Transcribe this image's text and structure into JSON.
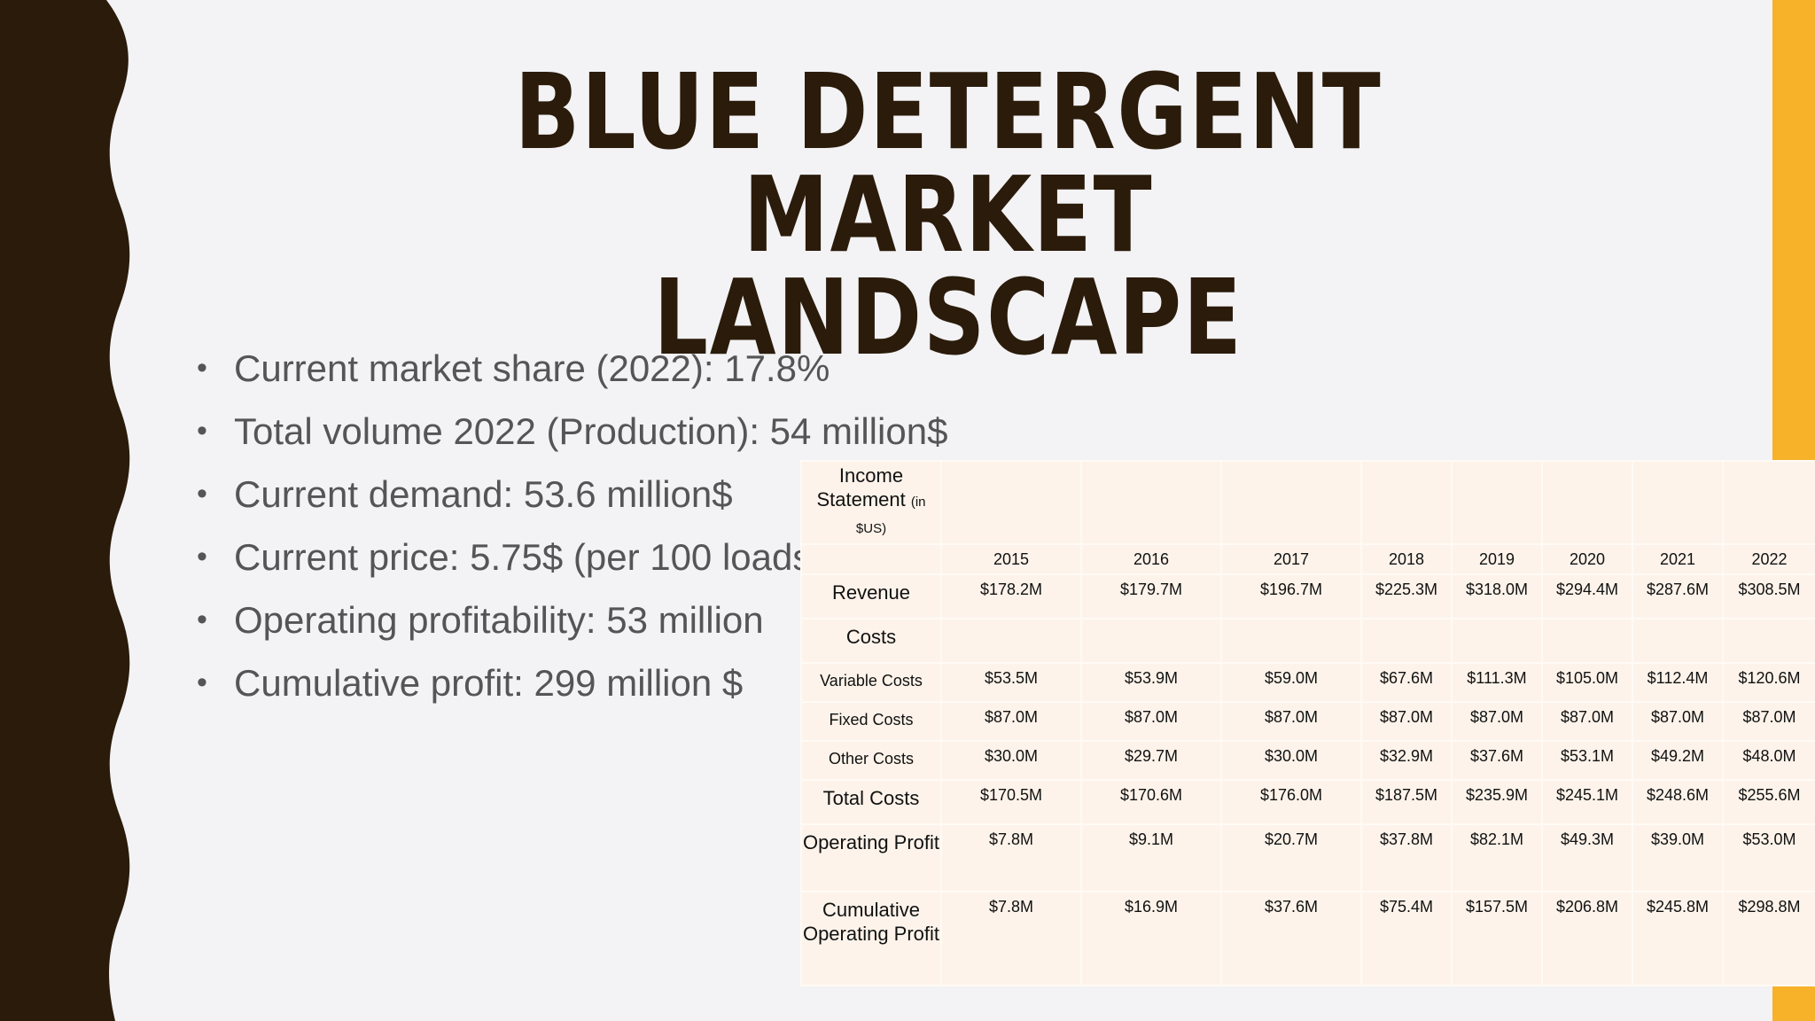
{
  "title": {
    "line1": "BLUE DETERGENT MARKET",
    "line2": "LANDSCAPE"
  },
  "bullets": [
    "Current market share (2022): 17.8%",
    "Total volume 2022 (Production):  54 million$",
    "Current demand: 53.6 million$",
    "Current price: 5.75$ (per 100 loads)",
    "Operating profitability: 53 million",
    "Cumulative profit: 299 million $"
  ],
  "table": {
    "header_main": "Income Statement",
    "header_small": "(in $US)",
    "years": [
      "2015",
      "2016",
      "2017",
      "2018",
      "2019",
      "2020",
      "2021",
      "2022"
    ],
    "rows": [
      {
        "label": "Revenue",
        "values": [
          "$178.2M",
          "$179.7M",
          "$196.7M",
          "$225.3M",
          "$318.0M",
          "$294.4M",
          "$287.6M",
          "$308.5M"
        ]
      },
      {
        "label": "Costs",
        "values": [
          "",
          "",
          "",
          "",
          "",
          "",
          "",
          ""
        ]
      },
      {
        "label": "Variable Costs",
        "values": [
          "$53.5M",
          "$53.9M",
          "$59.0M",
          "$67.6M",
          "$111.3M",
          "$105.0M",
          "$112.4M",
          "$120.6M"
        ]
      },
      {
        "label": "Fixed Costs",
        "values": [
          "$87.0M",
          "$87.0M",
          "$87.0M",
          "$87.0M",
          "$87.0M",
          "$87.0M",
          "$87.0M",
          "$87.0M"
        ]
      },
      {
        "label": "Other Costs",
        "values": [
          "$30.0M",
          "$29.7M",
          "$30.0M",
          "$32.9M",
          "$37.6M",
          "$53.1M",
          "$49.2M",
          "$48.0M"
        ]
      },
      {
        "label": "Total Costs",
        "values": [
          "$170.5M",
          "$170.6M",
          "$176.0M",
          "$187.5M",
          "$235.9M",
          "$245.1M",
          "$248.6M",
          "$255.6M"
        ]
      },
      {
        "label": "Operating Profit",
        "values": [
          "$7.8M",
          "$9.1M",
          "$20.7M",
          "$37.8M",
          "$82.1M",
          "$49.3M",
          "$39.0M",
          "$53.0M"
        ]
      },
      {
        "label": "Cumulative Operating Profit",
        "values": [
          "$7.8M",
          "$16.9M",
          "$37.6M",
          "$75.4M",
          "$157.5M",
          "$206.8M",
          "$245.8M",
          "$298.8M"
        ]
      }
    ]
  },
  "colors": {
    "background": "#f3f2f4",
    "left_wave": "#2a1b0b",
    "right_bar": "#f7b22a",
    "title": "#2a1b0b",
    "table_bg": "#fdf3ea"
  }
}
